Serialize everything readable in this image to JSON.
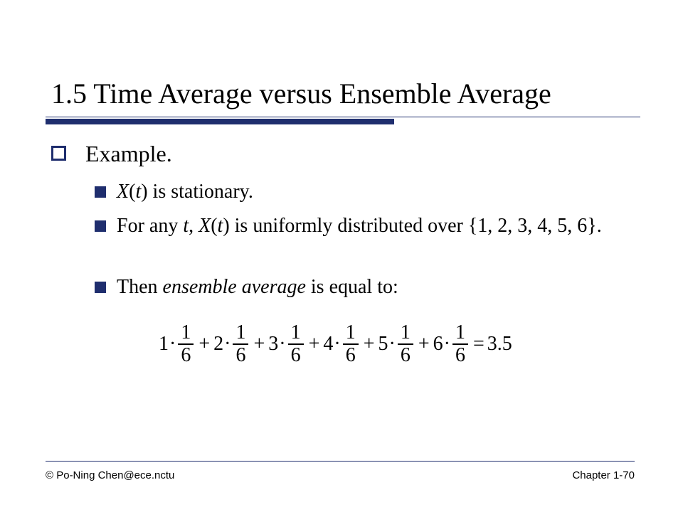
{
  "slide": {
    "title": "1.5 Time Average versus Ensemble Average",
    "level1": "Example.",
    "items": [
      {
        "var": "X",
        "arg": "t",
        "rest": " is stationary."
      },
      {
        "prefix": "For any ",
        "t1": "t",
        "comma": ", ",
        "var": "X",
        "arg": "t",
        "rest": " is uniformly distributed over {1, 2, 3, 4, 5, 6}."
      },
      {
        "prefix": "Then ",
        "emph": "ensemble average",
        "rest": " is equal to:"
      }
    ],
    "formula": {
      "terms": [
        {
          "coef": "1",
          "dot": "·",
          "num": "1",
          "den": "6",
          "op": "+"
        },
        {
          "coef": "2",
          "dot": "·",
          "num": "1",
          "den": "6",
          "op": "+"
        },
        {
          "coef": "3",
          "dot": "·",
          "num": "1",
          "den": "6",
          "op": "+"
        },
        {
          "coef": "4",
          "dot": "·",
          "num": "1",
          "den": "6",
          "op": "+"
        },
        {
          "coef": "5",
          "dot": "·",
          "num": "1",
          "den": "6",
          "op": "+"
        },
        {
          "coef": "6",
          "dot": "·",
          "num": "1",
          "den": "6",
          "op": "="
        }
      ],
      "result": "3.5"
    }
  },
  "footer": {
    "left": "© Po-Ning Chen@ece.nctu",
    "right": "Chapter 1-70"
  },
  "colors": {
    "accent": "#1f2e6e"
  }
}
